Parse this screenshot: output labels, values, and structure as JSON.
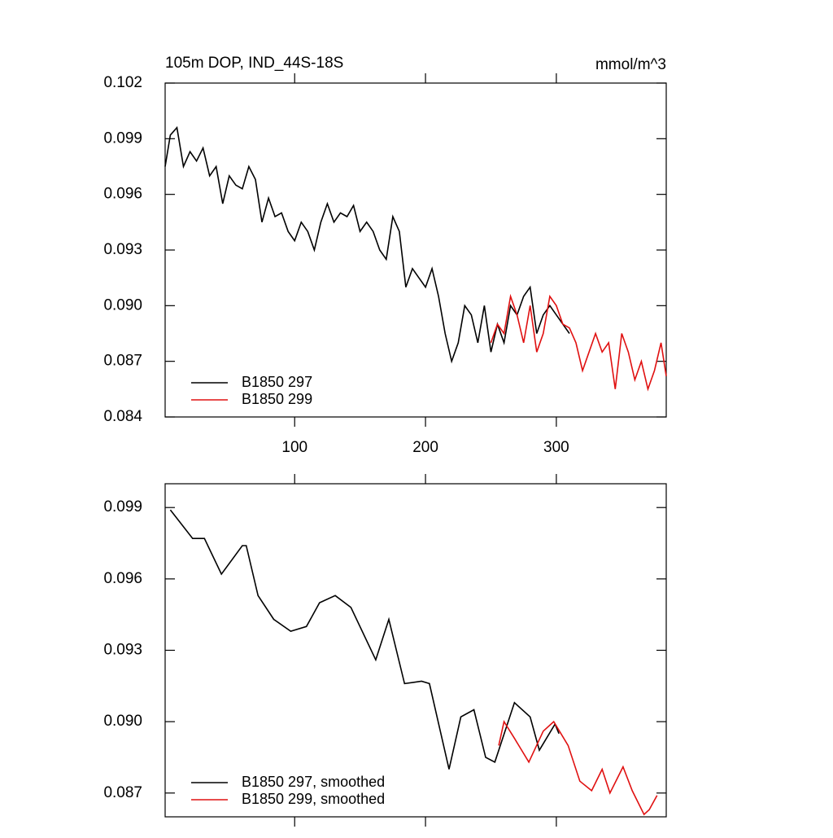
{
  "chart_data": [
    {
      "type": "line",
      "title": "105m DOP, IND_44S-18S",
      "units": "mmol/m^3",
      "xlim": [
        1,
        384
      ],
      "xticks": [
        100,
        200,
        300
      ],
      "ylim": [
        0.084,
        0.102
      ],
      "yticks": [
        0.102,
        0.099,
        0.096,
        0.093,
        {
          "value": 0.09,
          "label": "0.090"
        },
        0.087,
        0.084
      ],
      "legend": "lower left",
      "series": [
        {
          "name": "B1850 297",
          "color": "#000000",
          "x": [
            1,
            5,
            10,
            15,
            20,
            25,
            30,
            35,
            40,
            45,
            50,
            55,
            60,
            65,
            70,
            75,
            80,
            85,
            90,
            95,
            100,
            105,
            110,
            115,
            120,
            125,
            130,
            135,
            140,
            145,
            150,
            155,
            160,
            165,
            170,
            175,
            180,
            185,
            190,
            195,
            200,
            205,
            210,
            215,
            220,
            225,
            230,
            235,
            240,
            245,
            250,
            255,
            260,
            265,
            270,
            275,
            280,
            285,
            290,
            295,
            300,
            305,
            310
          ],
          "values": [
            0.0975,
            0.0992,
            0.0996,
            0.0975,
            0.0983,
            0.0978,
            0.0985,
            0.097,
            0.0975,
            0.0955,
            0.097,
            0.0965,
            0.0963,
            0.0975,
            0.0968,
            0.0945,
            0.0958,
            0.0948,
            0.095,
            0.094,
            0.0935,
            0.0945,
            0.094,
            0.093,
            0.0945,
            0.0955,
            0.0945,
            0.095,
            0.0948,
            0.0954,
            0.094,
            0.0945,
            0.094,
            0.093,
            0.0925,
            0.0948,
            0.094,
            0.091,
            0.092,
            0.0915,
            0.091,
            0.092,
            0.0905,
            0.0885,
            0.087,
            0.088,
            0.09,
            0.0895,
            0.088,
            0.09,
            0.0875,
            0.089,
            0.088,
            0.09,
            0.0895,
            0.0905,
            0.091,
            0.0885,
            0.0895,
            0.09,
            0.0895,
            0.089,
            0.0885
          ]
        },
        {
          "name": "B1850 299",
          "color": "#e01010",
          "x": [
            250,
            255,
            260,
            265,
            270,
            275,
            280,
            285,
            290,
            295,
            300,
            305,
            310,
            315,
            320,
            325,
            330,
            335,
            340,
            345,
            350,
            355,
            360,
            365,
            370,
            375,
            380,
            384
          ],
          "values": [
            0.088,
            0.089,
            0.0885,
            0.0905,
            0.0895,
            0.088,
            0.09,
            0.0875,
            0.0885,
            0.0905,
            0.09,
            0.089,
            0.0888,
            0.088,
            0.0865,
            0.0875,
            0.0885,
            0.0875,
            0.088,
            0.0855,
            0.0885,
            0.0875,
            0.086,
            0.087,
            0.0855,
            0.0865,
            0.088,
            0.0862
          ]
        }
      ]
    },
    {
      "type": "line",
      "xlim": [
        1,
        384
      ],
      "xticks": [
        100,
        200,
        300
      ],
      "ylim": [
        0.086,
        0.1
      ],
      "yticks": [
        0.099,
        0.096,
        0.093,
        {
          "value": 0.09,
          "label": "0.090"
        },
        0.087
      ],
      "legend": "lower left",
      "series": [
        {
          "name": "B1850 297, smoothed",
          "color": "#000000",
          "x": [
            5,
            22,
            31,
            44,
            60,
            63,
            72,
            84,
            97,
            109,
            119,
            131,
            143,
            162,
            172,
            184,
            197,
            203,
            218,
            227,
            237,
            246,
            253,
            268,
            280,
            287,
            299,
            302
          ],
          "values": [
            0.0989,
            0.0977,
            0.0977,
            0.0962,
            0.0974,
            0.0974,
            0.0953,
            0.0943,
            0.0938,
            0.094,
            0.095,
            0.0953,
            0.0948,
            0.0926,
            0.0943,
            0.0916,
            0.0917,
            0.0916,
            0.088,
            0.0902,
            0.0905,
            0.0885,
            0.0883,
            0.0908,
            0.0902,
            0.0888,
            0.0899,
            0.0895
          ]
        },
        {
          "name": "B1850 299, smoothed",
          "color": "#e01010",
          "x": [
            256,
            260,
            268,
            279,
            290,
            298,
            309,
            318,
            327,
            335,
            341,
            351,
            358,
            367,
            371,
            377
          ],
          "values": [
            0.089,
            0.09,
            0.0893,
            0.0883,
            0.0896,
            0.09,
            0.089,
            0.0875,
            0.0871,
            0.088,
            0.087,
            0.0881,
            0.0871,
            0.0861,
            0.0863,
            0.0869
          ]
        }
      ]
    }
  ]
}
